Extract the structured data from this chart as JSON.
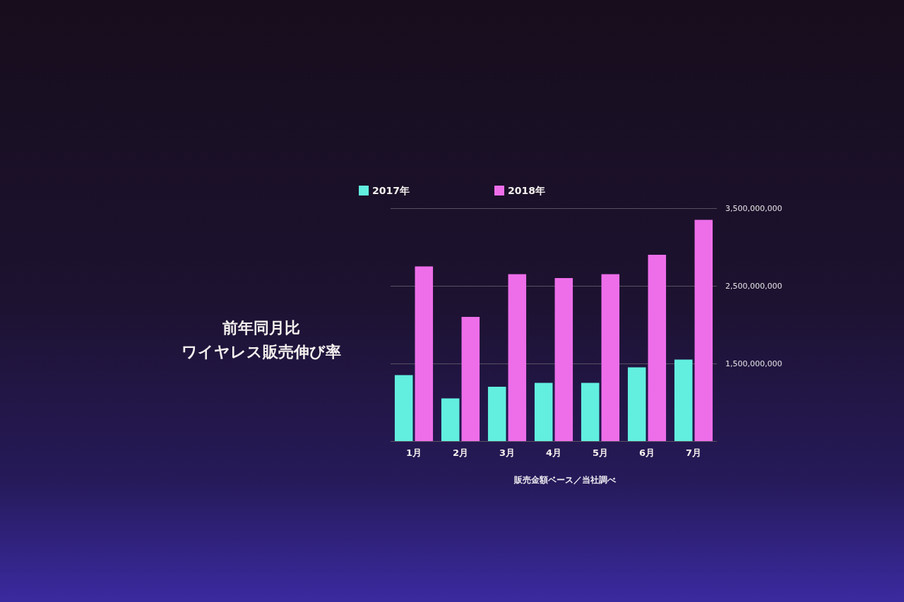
{
  "chart_data": {
    "type": "bar",
    "title": "前年同月比",
    "subtitle": "ワイヤレス販売伸び率",
    "annotations": [
      "販売金額ベース／当社調べ"
    ],
    "categories": [
      "1月",
      "2月",
      "3月",
      "4月",
      "5月",
      "6月",
      "7月"
    ],
    "series": [
      {
        "name": "2017年",
        "color": "#62efe0",
        "values": [
          1350000000,
          1050000000,
          1200000000,
          1250000000,
          1250000000,
          1450000000,
          1550000000
        ]
      },
      {
        "name": "2018年",
        "color": "#ee6eea",
        "values": [
          2750000000,
          2100000000,
          2650000000,
          2600000000,
          2650000000,
          2900000000,
          3350000000
        ]
      }
    ],
    "ylim": [
      500000000,
      3500000000
    ],
    "yticks": [
      {
        "value": 500000000,
        "label": null
      },
      {
        "value": 1500000000,
        "label": "1,500,000,000"
      },
      {
        "value": 2500000000,
        "label": "2,500,000,000"
      },
      {
        "value": 3500000000,
        "label": "3,500,000,000"
      }
    ],
    "grid": "y",
    "legend": "top"
  }
}
